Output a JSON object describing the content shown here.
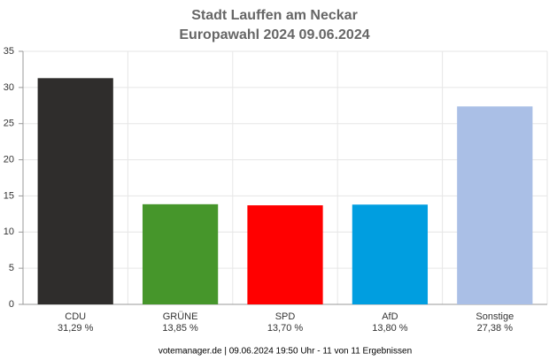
{
  "chart_data": {
    "type": "bar",
    "title": "Stadt Lauffen am Neckar",
    "subtitle": "Europawahl 2024 09.06.2024",
    "categories": [
      "CDU",
      "GRÜNE",
      "SPD",
      "AfD",
      "Sonstige"
    ],
    "values": [
      31.29,
      13.85,
      13.7,
      13.8,
      27.38
    ],
    "value_labels": [
      "31,29 %",
      "13,85 %",
      "13,70 %",
      "13,80 %",
      "27,38 %"
    ],
    "colors": [
      "#2f2d2c",
      "#46962b",
      "#ff0000",
      "#009ee0",
      "#aabfe6"
    ],
    "ylim": [
      0,
      35
    ],
    "yticks": [
      0,
      5,
      10,
      15,
      20,
      25,
      30,
      35
    ],
    "grid": true,
    "footer": "votemanager.de | 09.06.2024 19:50 Uhr - 11 von 11 Ergebnissen"
  }
}
